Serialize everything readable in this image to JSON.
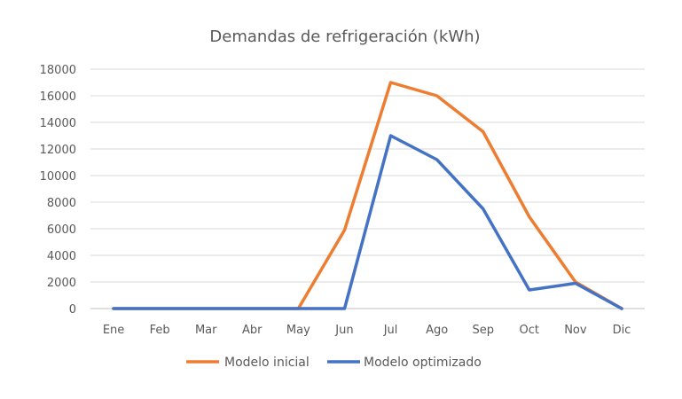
{
  "chart_data": {
    "type": "line",
    "title": "Demandas de refrigeración (kWh)",
    "xlabel": "",
    "ylabel": "",
    "categories": [
      "Ene",
      "Feb",
      "Mar",
      "Abr",
      "May",
      "Jun",
      "Jul",
      "Ago",
      "Sep",
      "Oct",
      "Nov",
      "Dic"
    ],
    "ylim": [
      0,
      18000
    ],
    "yticks": [
      0,
      2000,
      4000,
      6000,
      8000,
      10000,
      12000,
      14000,
      16000,
      18000
    ],
    "grid": true,
    "legend_position": "bottom",
    "series": [
      {
        "name": "Modelo inicial",
        "color": "#ED7D31",
        "values": [
          0,
          0,
          0,
          0,
          0,
          5900,
          17000,
          16000,
          13300,
          6900,
          2000,
          0
        ]
      },
      {
        "name": "Modelo optimizado",
        "color": "#4472C4",
        "values": [
          0,
          0,
          0,
          0,
          0,
          0,
          13000,
          11200,
          7500,
          1400,
          1900,
          0
        ]
      }
    ]
  }
}
